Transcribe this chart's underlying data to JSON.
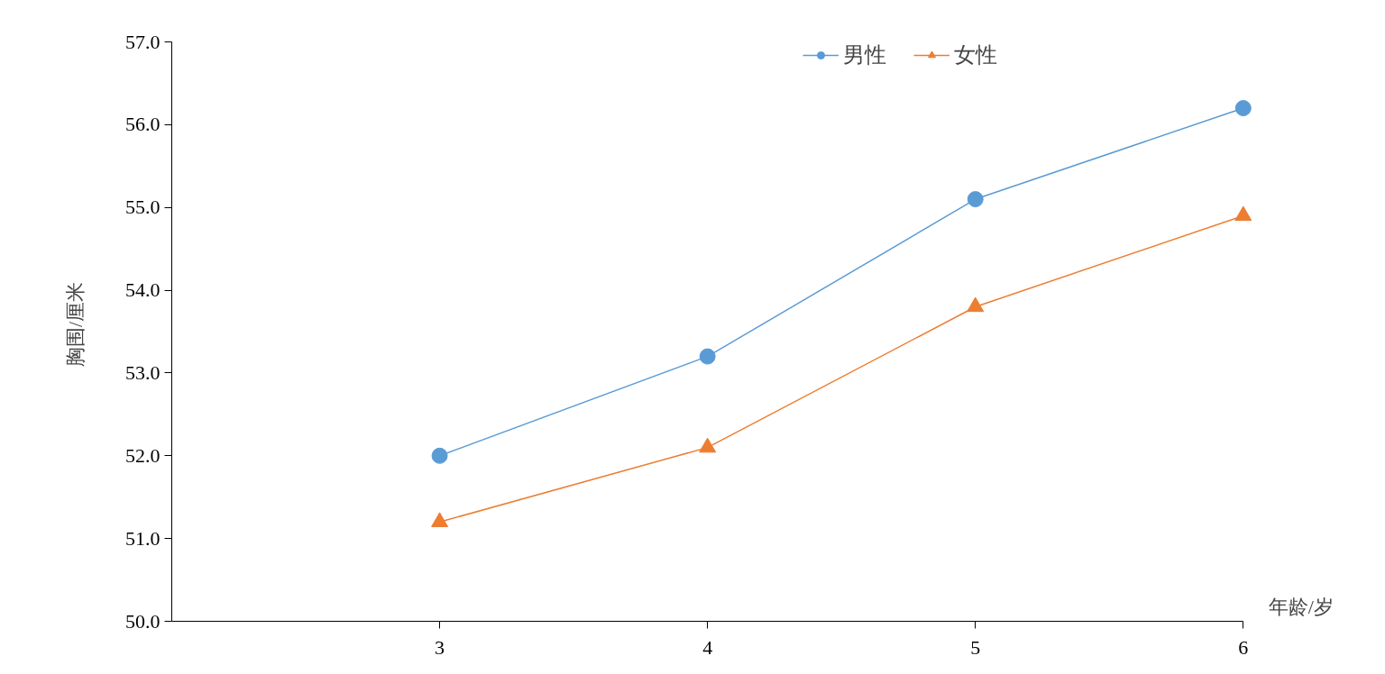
{
  "chart_data": {
    "type": "line",
    "xlabel": "年龄/岁",
    "ylabel": "胸围/厘米",
    "x": [
      3,
      4,
      5,
      6
    ],
    "xlim": [
      2,
      6
    ],
    "xticks": [
      3,
      4,
      5,
      6
    ],
    "ylim": [
      50,
      57
    ],
    "yticks": [
      {
        "value": 50,
        "label": "50.0"
      },
      {
        "value": 51,
        "label": "51.0"
      },
      {
        "value": 52,
        "label": "52.0"
      },
      {
        "value": 53,
        "label": "53.0"
      },
      {
        "value": 54,
        "label": "54.0"
      },
      {
        "value": 55,
        "label": "55.0"
      },
      {
        "value": 56,
        "label": "56.0"
      },
      {
        "value": 57,
        "label": "57.0"
      }
    ],
    "grid": false,
    "legend": "top",
    "line_style": "solid",
    "series": [
      {
        "name": "男性",
        "color": "#5b9bd5",
        "marker": "circle",
        "values": [
          52.0,
          53.2,
          55.1,
          56.2
        ]
      },
      {
        "name": "女性",
        "color": "#ed7d31",
        "marker": "triangle",
        "values": [
          51.2,
          52.1,
          53.8,
          54.9
        ]
      }
    ]
  }
}
